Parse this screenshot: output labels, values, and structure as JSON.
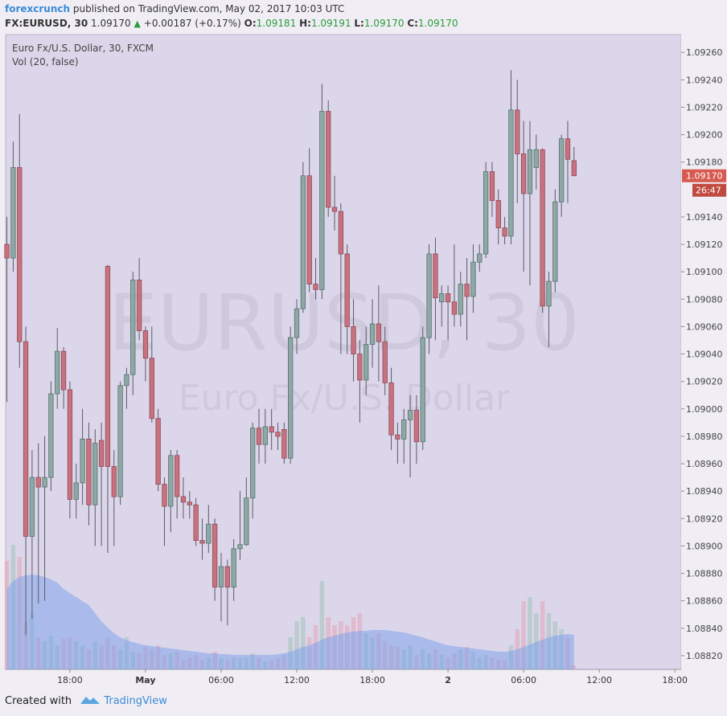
{
  "header": {
    "author": "forexcrunch",
    "published": "published on TradingView.com, May 02, 2017 10:03 UTC"
  },
  "symbol_line": {
    "symbol": "FX:EURUSD, 30",
    "last": "1.09170",
    "change": "+0.00187 (+0.17%)",
    "o_label": "O:",
    "o": "1.09181",
    "h_label": "H:",
    "h": "1.09191",
    "l_label": "L:",
    "l": "1.09170",
    "c_label": "C:",
    "c": "1.09170"
  },
  "chart_data": {
    "type": "candlestick",
    "legend": [
      "Euro Fx/U.S. Dollar, 30, FXCM",
      "Vol (20, false)"
    ],
    "watermark": "EURUSD, 30",
    "watermark_sub": "Euro Fx/U.S. Dollar",
    "open": [
      1.0912,
      1.0911,
      1.09176,
      1.09049,
      1.08907,
      1.0895,
      1.08943,
      1.0895,
      1.09011,
      1.09042,
      1.09014,
      1.08934,
      1.08946,
      1.08978,
      1.0893,
      1.08977,
      1.09104,
      1.08958,
      1.08936,
      1.09017,
      1.09025,
      1.09094,
      1.09057,
      1.09037,
      1.08993,
      1.08945,
      1.08929,
      1.08966,
      1.08936,
      1.08932,
      1.0893,
      1.08904,
      1.08902,
      1.08916,
      1.0887,
      1.08885,
      1.0887,
      1.08898,
      1.08901,
      1.08935,
      1.08986,
      1.08974,
      1.08987,
      1.08983,
      1.08985,
      1.08964,
      1.09052,
      1.09073,
      1.0917,
      1.09091,
      1.09087,
      1.09217,
      1.09147,
      1.09144,
      1.09113,
      1.0906,
      1.0904,
      1.09021,
      1.09047,
      1.09062,
      1.09049,
      1.09019,
      1.08981,
      1.08978,
      1.08992,
      1.08999,
      1.08976,
      1.09052,
      1.09113,
      1.09078,
      1.09084,
      1.09078,
      1.09069,
      1.09091,
      1.09082,
      1.09107,
      1.09113,
      1.09173,
      1.09152,
      1.09132,
      1.09126,
      1.09218,
      1.09186,
      1.09157,
      1.09176,
      1.09189,
      1.09075,
      1.09093,
      1.09151,
      1.09197,
      1.09181
    ],
    "high": [
      1.0914,
      1.09195,
      1.09215,
      1.0906,
      1.0897,
      1.08975,
      1.0898,
      1.0902,
      1.09059,
      1.09045,
      1.0902,
      1.0896,
      1.09,
      1.0899,
      1.08985,
      1.0899,
      1.09105,
      1.0897,
      1.0902,
      1.0903,
      1.091,
      1.0911,
      1.0906,
      1.0906,
      1.09,
      1.0895,
      1.0897,
      1.0897,
      1.0895,
      1.0894,
      1.08935,
      1.0892,
      1.0893,
      1.0892,
      1.08895,
      1.0889,
      1.08905,
      1.0894,
      1.0895,
      1.0899,
      1.09,
      1.09,
      1.09,
      1.0899,
      1.0899,
      1.0906,
      1.0908,
      1.0918,
      1.0919,
      1.0911,
      1.09237,
      1.09225,
      1.0917,
      1.0915,
      1.0912,
      1.0908,
      1.0905,
      1.0906,
      1.0908,
      1.0909,
      1.0906,
      1.0903,
      1.0899,
      1.09,
      1.0901,
      1.0901,
      1.0906,
      1.0912,
      1.09125,
      1.0909,
      1.0909,
      1.0912,
      1.091,
      1.0911,
      1.0912,
      1.0912,
      1.0918,
      1.0918,
      1.0916,
      1.0914,
      1.09247,
      1.0924,
      1.0921,
      1.0921,
      1.092,
      1.0919,
      1.091,
      1.0916,
      1.092,
      1.0921,
      1.09191
    ],
    "low": [
      1.09005,
      1.091,
      1.0903,
      1.08835,
      1.08847,
      1.08858,
      1.0886,
      1.0894,
      1.09,
      1.09,
      1.0892,
      1.0892,
      1.0893,
      1.08915,
      1.089,
      1.089,
      1.08895,
      1.089,
      1.0893,
      1.09,
      1.0901,
      1.0905,
      1.0902,
      1.0899,
      1.0894,
      1.089,
      1.0891,
      1.0892,
      1.0892,
      1.0892,
      1.089,
      1.0889,
      1.08895,
      1.0886,
      1.08845,
      1.08842,
      1.0886,
      1.0889,
      1.089,
      1.0892,
      1.0896,
      1.0896,
      1.0897,
      1.0897,
      1.0896,
      1.0896,
      1.0904,
      1.0907,
      1.09085,
      1.0908,
      1.0908,
      1.0914,
      1.0913,
      1.0904,
      1.0904,
      1.0902,
      1.0899,
      1.0901,
      1.0903,
      1.0902,
      1.0901,
      1.0897,
      1.0896,
      1.0896,
      1.0895,
      1.0896,
      1.0897,
      1.0904,
      1.0905,
      1.0906,
      1.0905,
      1.0906,
      1.0906,
      1.0905,
      1.0907,
      1.091,
      1.0911,
      1.0914,
      1.0912,
      1.0912,
      1.0912,
      1.0915,
      1.091,
      1.0909,
      1.0916,
      1.0907,
      1.09045,
      1.09085,
      1.0914,
      1.0915,
      1.0917
    ],
    "close": [
      1.0911,
      1.09176,
      1.09049,
      1.08907,
      1.0895,
      1.08943,
      1.0895,
      1.09011,
      1.09042,
      1.09014,
      1.08934,
      1.08946,
      1.08978,
      1.0893,
      1.08975,
      1.08958,
      1.08958,
      1.08936,
      1.09017,
      1.09025,
      1.09094,
      1.09057,
      1.09037,
      1.08993,
      1.08945,
      1.08929,
      1.08966,
      1.08936,
      1.08932,
      1.0893,
      1.08904,
      1.08902,
      1.08916,
      1.0887,
      1.08885,
      1.0887,
      1.08898,
      1.08901,
      1.08935,
      1.08986,
      1.08974,
      1.08987,
      1.08983,
      1.0898,
      1.08964,
      1.09052,
      1.09073,
      1.0917,
      1.09091,
      1.09087,
      1.09217,
      1.09147,
      1.09144,
      1.09113,
      1.0906,
      1.0904,
      1.09021,
      1.09047,
      1.09062,
      1.09049,
      1.09019,
      1.08981,
      1.08978,
      1.08992,
      1.08999,
      1.08976,
      1.09052,
      1.09113,
      1.09081,
      1.09084,
      1.09078,
      1.09069,
      1.09091,
      1.09082,
      1.09107,
      1.09113,
      1.09173,
      1.09152,
      1.09132,
      1.09126,
      1.09218,
      1.09186,
      1.09157,
      1.09189,
      1.09189,
      1.09075,
      1.09093,
      1.09151,
      1.09197,
      1.09182,
      1.0917
    ],
    "volume": [
      135,
      155,
      140,
      60,
      70,
      40,
      35,
      42,
      30,
      38,
      40,
      35,
      30,
      25,
      35,
      30,
      40,
      30,
      25,
      40,
      22,
      20,
      28,
      25,
      30,
      18,
      20,
      22,
      12,
      15,
      18,
      12,
      15,
      22,
      14,
      12,
      15,
      14,
      15,
      20,
      14,
      10,
      12,
      14,
      18,
      40,
      60,
      65,
      40,
      55,
      110,
      65,
      55,
      60,
      55,
      65,
      70,
      45,
      40,
      45,
      35,
      30,
      28,
      25,
      30,
      18,
      25,
      20,
      25,
      18,
      15,
      20,
      25,
      28,
      22,
      15,
      18,
      15,
      12,
      12,
      30,
      50,
      85,
      90,
      70,
      85,
      70,
      60,
      50,
      40,
      5
    ],
    "volume_ma": [
      100,
      110,
      115,
      117,
      118,
      117,
      115,
      112,
      108,
      100,
      95,
      90,
      85,
      80,
      70,
      60,
      52,
      45,
      40,
      36,
      34,
      32,
      30,
      29,
      28,
      27,
      26,
      25,
      24,
      23,
      22,
      21,
      20,
      20,
      19,
      19,
      18,
      18,
      18,
      18,
      18,
      18,
      18,
      19,
      20,
      22,
      25,
      28,
      30,
      33,
      37,
      40,
      42,
      44,
      46,
      47,
      48,
      48,
      49,
      49,
      49,
      48,
      47,
      46,
      44,
      42,
      40,
      37,
      35,
      32,
      30,
      29,
      28,
      27,
      26,
      25,
      24,
      23,
      22,
      22,
      23,
      25,
      28,
      31,
      34,
      37,
      40,
      42,
      43,
      44,
      43
    ],
    "vlim": [
      0,
      160
    ],
    "xlim": [
      -0.2,
      107
    ],
    "xticks": [
      {
        "value": 10,
        "label": "18:00"
      },
      {
        "value": 22,
        "label": "May"
      },
      {
        "value": 34,
        "label": "06:00"
      },
      {
        "value": 46,
        "label": "12:00"
      },
      {
        "value": 58,
        "label": "18:00"
      },
      {
        "value": 70,
        "label": "2"
      },
      {
        "value": 82,
        "label": "06:00"
      },
      {
        "value": 94,
        "label": "12:00"
      },
      {
        "value": 106,
        "label": "18:00"
      }
    ],
    "ylim": [
      1.0881,
      1.09273
    ],
    "yticks": [
      {
        "value": 1.0882,
        "label": "1.08820"
      },
      {
        "value": 1.0884,
        "label": "1.08840"
      },
      {
        "value": 1.0886,
        "label": "1.08860"
      },
      {
        "value": 1.0888,
        "label": "1.08880"
      },
      {
        "value": 1.089,
        "label": "1.08900"
      },
      {
        "value": 1.0892,
        "label": "1.08920"
      },
      {
        "value": 1.0894,
        "label": "1.08940"
      },
      {
        "value": 1.0896,
        "label": "1.08960"
      },
      {
        "value": 1.0898,
        "label": "1.08980"
      },
      {
        "value": 1.09,
        "label": "1.09000"
      },
      {
        "value": 1.0902,
        "label": "1.09020"
      },
      {
        "value": 1.0904,
        "label": "1.09040"
      },
      {
        "value": 1.0906,
        "label": "1.09060"
      },
      {
        "value": 1.0908,
        "label": "1.09080"
      },
      {
        "value": 1.091,
        "label": "1.09100"
      },
      {
        "value": 1.0912,
        "label": "1.09120"
      },
      {
        "value": 1.0914,
        "label": "1.09140"
      },
      {
        "value": 1.0918,
        "label": "1.09180"
      },
      {
        "value": 1.092,
        "label": "1.09200"
      },
      {
        "value": 1.0922,
        "label": "1.09220"
      },
      {
        "value": 1.0924,
        "label": "1.09240"
      },
      {
        "value": 1.0926,
        "label": "1.09260"
      }
    ],
    "last_price": {
      "value": 1.0917,
      "label": "1.09170"
    },
    "countdown": "26:47",
    "up_color": "#8ea9a5",
    "down_color": "#c9727f",
    "up_volume_color": "rgba(160,195,185,0.55)",
    "down_volume_color": "rgba(225,165,180,0.55)",
    "ma_color": "rgba(120,160,235,0.5)"
  },
  "footer": {
    "created": "Created with",
    "brand": "TradingView"
  }
}
